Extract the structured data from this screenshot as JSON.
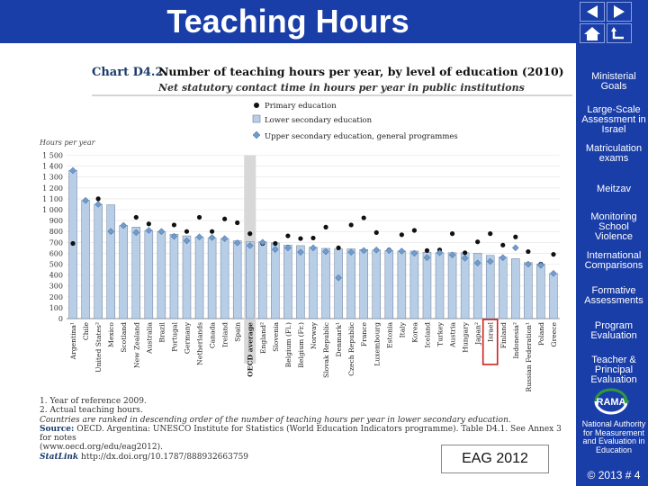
{
  "slide": {
    "title": "Teaching Hours",
    "slide_number": "© 2013 # 4",
    "eag_label": "EAG 2012"
  },
  "sidebar": {
    "items": [
      {
        "label": "Ministerial Goals"
      },
      {
        "label": "Large-Scale Assessment in Israel"
      },
      {
        "label": "Matriculation exams"
      },
      {
        "label": "Meitzav"
      },
      {
        "label": "Monitoring School Violence"
      },
      {
        "label": "International Comparisons"
      },
      {
        "label": "Formative Assessments"
      },
      {
        "label": "Program Evaluation"
      },
      {
        "label": "Teacher & Principal Evaluation"
      },
      {
        "label": "RAMA"
      },
      {
        "label": "National Authority for Measurement and Evaluation in Education"
      }
    ]
  },
  "chart_data": {
    "type": "bar",
    "chart_id": "Chart D4.2.",
    "title": "Number of teaching hours per year, by level of education (2010)",
    "subtitle": "Net statutory contact time in hours per year in public institutions",
    "ylabel": "Hours per year",
    "ylim": [
      0,
      1500
    ],
    "yticks": [
      0,
      100,
      200,
      300,
      400,
      500,
      600,
      700,
      800,
      900,
      "1 000",
      "1 100",
      "1 200",
      "1 300",
      "1 400",
      "1 500"
    ],
    "legend": [
      "Primary education",
      "Lower secondary education",
      "Upper secondary education, general programmes"
    ],
    "colors": {
      "primary": "#111111",
      "lower": "#b8cde6",
      "lower_border": "#6a7f9a",
      "upper": "#6f9ccf",
      "highlight": "#d8d8d8",
      "israel_box": "#cc2222"
    },
    "categories": [
      "Argentina¹",
      "Chile",
      "United States²",
      "Mexico",
      "Scotland",
      "New Zealand",
      "Australia",
      "Brazil",
      "Portugal",
      "Germany",
      "Netherlands",
      "Canada",
      "Ireland",
      "Spain",
      "OECD average",
      "England²",
      "Slovenia",
      "Belgium (Fl.)",
      "Belgium (Fr.)",
      "Norway",
      "Slovak Republic",
      "Denmark¹",
      "Czech Republic",
      "France",
      "Luxembourg",
      "Estonia",
      "Italy",
      "Korea",
      "Iceland",
      "Turkey",
      "Austria",
      "Hungary",
      "Japan²",
      "Israel",
      "Finland",
      "Indonesia²",
      "Russian Federation¹",
      "Poland",
      "Greece"
    ],
    "series": [
      {
        "name": "Lower secondary education",
        "values": [
          1360,
          1085,
          1050,
          1045,
          855,
          840,
          810,
          800,
          775,
          760,
          750,
          740,
          735,
          715,
          705,
          705,
          695,
          675,
          670,
          655,
          645,
          640,
          640,
          635,
          630,
          625,
          620,
          620,
          610,
          605,
          605,
          605,
          600,
          580,
          565,
          550,
          515,
          500,
          415
        ]
      },
      {
        "name": "Primary education",
        "values": [
          690,
          1085,
          1100,
          800,
          855,
          930,
          870,
          800,
          860,
          800,
          930,
          800,
          915,
          880,
          780,
          690,
          690,
          760,
          735,
          740,
          840,
          650,
          860,
          925,
          790,
          630,
          770,
          810,
          625,
          630,
          780,
          605,
          705,
          780,
          675,
          750,
          615,
          500,
          590
        ]
      },
      {
        "name": "Upper secondary education, general programmes",
        "values": [
          1360,
          1085,
          1050,
          800,
          855,
          790,
          810,
          800,
          755,
          715,
          750,
          745,
          735,
          695,
          670,
          700,
          635,
          650,
          610,
          650,
          615,
          375,
          610,
          625,
          630,
          625,
          620,
          600,
          560,
          605,
          585,
          555,
          510,
          525,
          560,
          650,
          500,
          490,
          415
        ]
      }
    ],
    "highlight_category": "OECD average",
    "boxed_category": "Israel"
  },
  "footnotes": {
    "note1": "1. Year of reference 2009.",
    "note2": "2. Actual teaching hours.",
    "ranking": "Countries are ranked in descending order of the number of teaching hours per year in lower secondary education.",
    "source_label": "Source:",
    "source_text": " OECD. Argentina: UNESCO Institute for Statistics (World Education Indicators programme). Table D4.1. See Annex 3 for notes",
    "url": "(www.oecd.org/edu/eag2012).",
    "statlink": "StatLink",
    "statlink_url": "http://dx.doi.org/10.1787/888932663759"
  }
}
